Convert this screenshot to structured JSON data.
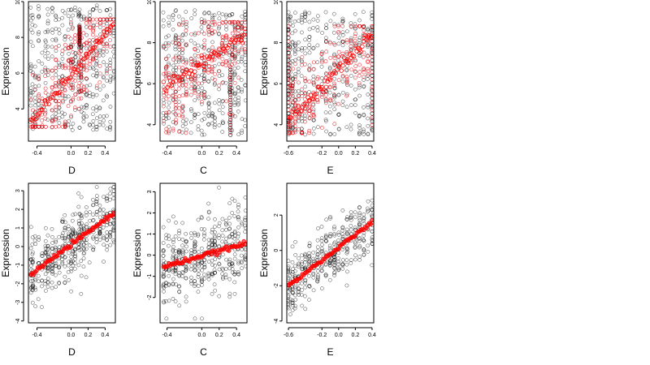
{
  "chart_data": [
    {
      "type": "scatter",
      "panel": "top-left",
      "xlabel": "D",
      "ylabel": "Expression",
      "xlim": [
        -0.5,
        0.52
      ],
      "ylim": [
        2.2,
        10.0
      ],
      "xticks": [
        -0.4,
        0.0,
        0.2,
        0.4
      ],
      "xtick_labels": [
        "-0.4",
        "0.0",
        "0.2",
        "0.4"
      ],
      "yticks": [
        4,
        6,
        8,
        10
      ],
      "ytick_labels": [
        "4",
        "6",
        "8",
        "10"
      ],
      "black_points": {
        "x_columns": [
          -0.47,
          -0.45,
          -0.42,
          -0.38,
          -0.34,
          -0.3,
          -0.27,
          -0.22,
          -0.18,
          -0.14,
          -0.1,
          -0.07,
          -0.03,
          0.0,
          0.02,
          0.05,
          0.09,
          0.1,
          0.12,
          0.15,
          0.18,
          0.22,
          0.26,
          0.3,
          0.34,
          0.38,
          0.42,
          0.46,
          0.5
        ],
        "y_range": [
          2.8,
          9.8
        ],
        "count": 400
      },
      "red_points": {
        "x_range": [
          -0.47,
          0.5
        ],
        "y_range": [
          3.0,
          9.0
        ],
        "count": 260
      },
      "fit": {
        "x": [
          -0.47,
          0.5
        ],
        "y": [
          3.2,
          8.7
        ],
        "dense_at_x": [
          0.1
        ],
        "dense_y_range": [
          7.6,
          8.6
        ]
      }
    },
    {
      "type": "scatter",
      "panel": "top-middle",
      "xlabel": "C",
      "ylabel": "Expression",
      "xlim": [
        -0.48,
        0.52
      ],
      "ylim": [
        3.2,
        10.0
      ],
      "xticks": [
        -0.4,
        0.0,
        0.2,
        0.4
      ],
      "xtick_labels": [
        "-0.4",
        "0.0",
        "0.2",
        "0.4"
      ],
      "yticks": [
        4,
        6,
        8,
        10
      ],
      "ytick_labels": [
        "4",
        "6",
        "8",
        "10"
      ],
      "black_points": {
        "x_columns": [
          -0.44,
          -0.41,
          -0.38,
          -0.33,
          -0.3,
          -0.26,
          -0.22,
          -0.18,
          -0.12,
          -0.08,
          -0.04,
          0.0,
          0.03,
          0.08,
          0.12,
          0.15,
          0.2,
          0.24,
          0.28,
          0.32,
          0.35,
          0.38,
          0.42,
          0.46,
          0.5
        ],
        "y_range": [
          3.5,
          9.6
        ],
        "count": 380
      },
      "red_points": {
        "x_range": [
          -0.44,
          0.5
        ],
        "y_range": [
          3.6,
          9.0
        ],
        "count": 240
      },
      "fit": {
        "x": [
          -0.44,
          0.5
        ],
        "y": [
          5.8,
          8.4
        ],
        "dense_at_x": [
          0.33
        ],
        "dense_y_range": [
          3.5,
          6.8
        ]
      }
    },
    {
      "type": "scatter",
      "panel": "top-right",
      "xlabel": "E",
      "ylabel": "Expression",
      "xlim": [
        -0.62,
        0.42
      ],
      "ylim": [
        3.2,
        10.0
      ],
      "xticks": [
        -0.6,
        -0.2,
        0.0,
        0.2,
        0.4
      ],
      "xtick_labels": [
        "-0.6",
        "-0.2",
        "0.0",
        "0.2",
        "0.4"
      ],
      "yticks": [
        4,
        6,
        8,
        10
      ],
      "ytick_labels": [
        "4",
        "6",
        "8",
        "10"
      ],
      "black_points": {
        "x_columns": [
          -0.6,
          -0.58,
          -0.55,
          -0.52,
          -0.48,
          -0.44,
          -0.4,
          -0.35,
          -0.3,
          -0.25,
          -0.2,
          -0.15,
          -0.1,
          -0.05,
          0.0,
          0.05,
          0.1,
          0.15,
          0.2,
          0.25,
          0.3,
          0.35,
          0.4
        ],
        "y_range": [
          3.5,
          9.5
        ],
        "count": 360
      },
      "red_points": {
        "x_range": [
          -0.6,
          0.4
        ],
        "y_range": [
          3.6,
          8.8
        ],
        "count": 230
      },
      "fit": {
        "x": [
          -0.6,
          0.4
        ],
        "y": [
          4.2,
          8.4
        ],
        "dense_at_x": [
          -0.6,
          0.4
        ],
        "dense_y_range": [
          3.8,
          8.8
        ]
      }
    },
    {
      "type": "scatter",
      "panel": "bottom-left",
      "xlabel": "D",
      "ylabel": "Expression",
      "xlim": [
        -0.5,
        0.52
      ],
      "ylim": [
        -4.1,
        3.4
      ],
      "xticks": [
        -0.4,
        0.0,
        0.2,
        0.4
      ],
      "xtick_labels": [
        "-0.4",
        "0.0",
        "0.2",
        "0.4"
      ],
      "yticks": [
        -4,
        -3,
        -2,
        -1,
        0,
        1,
        2,
        3
      ],
      "ytick_labels": [
        "-4",
        "-3",
        "-2",
        "-1",
        "0",
        "1",
        "2",
        "3"
      ],
      "black_points": {
        "x_columns": [
          -0.47,
          -0.45,
          -0.42,
          -0.38,
          -0.34,
          -0.3,
          -0.27,
          -0.22,
          -0.18,
          -0.14,
          -0.1,
          -0.07,
          -0.03,
          0.0,
          0.02,
          0.05,
          0.09,
          0.1,
          0.12,
          0.15,
          0.18,
          0.22,
          0.26,
          0.3,
          0.34,
          0.38,
          0.42,
          0.46,
          0.5
        ],
        "y_spread": 0.9,
        "y_range": [
          -3.9,
          3.2
        ],
        "count": 420
      },
      "fit": {
        "x": [
          -0.47,
          0.5
        ],
        "y": [
          -1.5,
          1.8
        ]
      }
    },
    {
      "type": "scatter",
      "panel": "bottom-middle",
      "xlabel": "C",
      "ylabel": "Expression",
      "xlim": [
        -0.48,
        0.52
      ],
      "ylim": [
        -3.2,
        3.4
      ],
      "xticks": [
        -0.4,
        0.0,
        0.2,
        0.4
      ],
      "xtick_labels": [
        "-0.4",
        "0.0",
        "0.2",
        "0.4"
      ],
      "yticks": [
        -2,
        -1,
        0,
        1,
        2,
        3
      ],
      "ytick_labels": [
        "-2",
        "-1",
        "0",
        "1",
        "2",
        "3"
      ],
      "black_points": {
        "x_columns": [
          -0.44,
          -0.41,
          -0.38,
          -0.33,
          -0.3,
          -0.26,
          -0.22,
          -0.18,
          -0.12,
          -0.08,
          -0.04,
          0.0,
          0.03,
          0.08,
          0.12,
          0.15,
          0.2,
          0.24,
          0.28,
          0.32,
          0.35,
          0.38,
          0.42,
          0.46,
          0.5
        ],
        "y_spread": 1.0,
        "y_range": [
          -3.0,
          3.2
        ],
        "count": 400
      },
      "fit": {
        "x": [
          -0.44,
          0.5
        ],
        "y": [
          -0.55,
          0.55
        ]
      }
    },
    {
      "type": "scatter",
      "panel": "bottom-right",
      "xlabel": "E",
      "ylabel": "Expression",
      "xlim": [
        -0.62,
        0.42
      ],
      "ylim": [
        -4.1,
        3.8
      ],
      "xticks": [
        -0.6,
        -0.2,
        0.0,
        0.2,
        0.4
      ],
      "xtick_labels": [
        "-0.6",
        "-0.2",
        "0.0",
        "0.2",
        "0.4"
      ],
      "yticks": [
        -4,
        -2,
        0,
        2
      ],
      "ytick_labels": [
        "-4",
        "-2",
        "0",
        "2"
      ],
      "black_points": {
        "x_columns": [
          -0.6,
          -0.58,
          -0.55,
          -0.52,
          -0.48,
          -0.44,
          -0.4,
          -0.35,
          -0.3,
          -0.25,
          -0.2,
          -0.15,
          -0.1,
          -0.05,
          0.0,
          0.05,
          0.1,
          0.15,
          0.2,
          0.25,
          0.3,
          0.35,
          0.4
        ],
        "y_spread": 0.85,
        "y_range": [
          -3.9,
          3.6
        ],
        "count": 380
      },
      "fit": {
        "x": [
          -0.6,
          0.4
        ],
        "y": [
          -2.0,
          1.6
        ]
      }
    }
  ],
  "colors": {
    "black_points": "#000000",
    "red_points": "#e8000b",
    "fit": "#ff0000",
    "frame": "#000000"
  }
}
